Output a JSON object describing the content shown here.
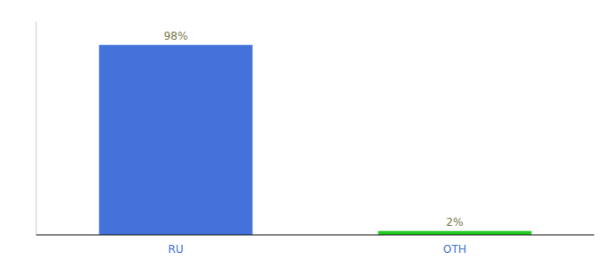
{
  "chart_data": {
    "type": "bar",
    "categories": [
      "RU",
      "OTH"
    ],
    "values": [
      98,
      2
    ],
    "value_labels": [
      "98%",
      "2%"
    ],
    "colors": [
      "#4472db",
      "#22cc22"
    ],
    "ylim": [
      0,
      110
    ],
    "data_labels": true,
    "tick_labels": "x"
  }
}
